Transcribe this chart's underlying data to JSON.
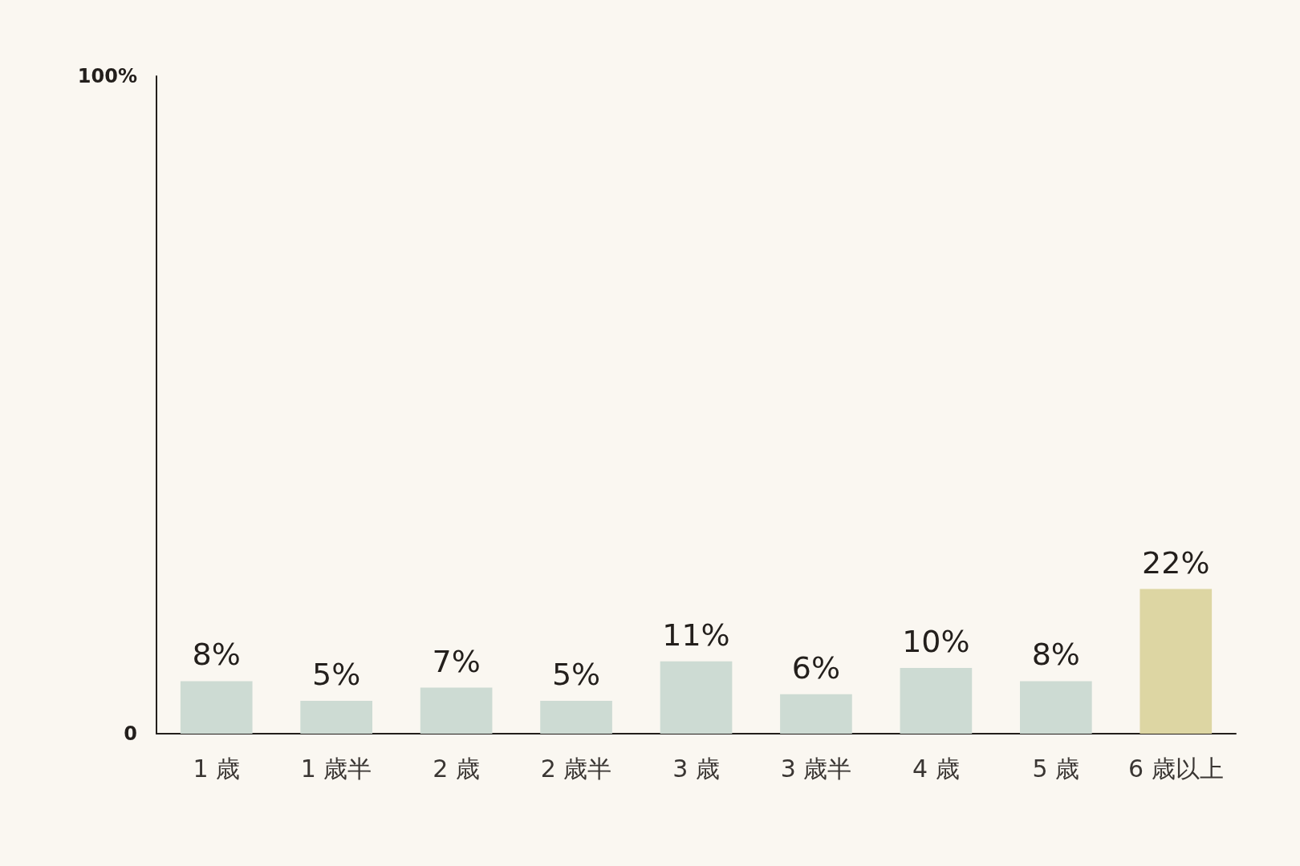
{
  "chart_data": {
    "type": "bar",
    "categories": [
      "1 歳",
      "1 歳半",
      "2 歳",
      "2 歳半",
      "3 歳",
      "3 歳半",
      "4 歳",
      "5 歳",
      "6 歳以上"
    ],
    "values": [
      8,
      5,
      7,
      5,
      11,
      6,
      10,
      8,
      22
    ],
    "colors": [
      "#cddbd3",
      "#cddbd3",
      "#cddbd3",
      "#cddbd3",
      "#cddbd3",
      "#cddbd3",
      "#cddbd3",
      "#cddbd3",
      "#ddd6a3"
    ],
    "value_labels": [
      "8%",
      "5%",
      "7%",
      "5%",
      "11%",
      "6%",
      "10%",
      "8%",
      "22%"
    ],
    "ylim": [
      0,
      100
    ],
    "yticks": [
      0,
      {
        "value": 100,
        "label": "100%"
      }
    ],
    "grid": false
  }
}
